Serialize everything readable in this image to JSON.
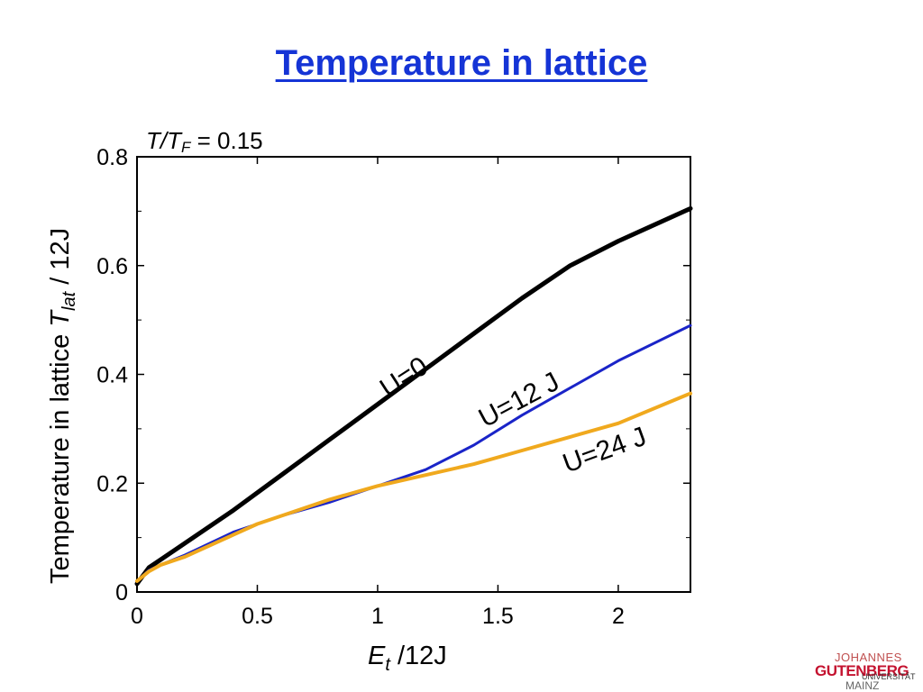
{
  "slide": {
    "title": "Temperature in lattice"
  },
  "chart_data": {
    "type": "line",
    "title": "",
    "annotation": {
      "T": "T",
      "slash": "/",
      "TF": "T",
      "F_sub": "F",
      "eq": " = 0.15"
    },
    "xlabel": {
      "main": "E",
      "sub": "t",
      "rest": " /12J"
    },
    "ylabel": {
      "main": "Temperature in lattice ",
      "T": "T",
      "sub": "lat",
      "rest": " / 12J"
    },
    "xlim": [
      0,
      2.3
    ],
    "ylim": [
      0,
      0.8
    ],
    "xticks": [
      0,
      0.5,
      1,
      1.5,
      2
    ],
    "xtick_labels": [
      "0",
      "0.5",
      "1",
      "1.5",
      "2"
    ],
    "yticks": [
      0,
      0.2,
      0.4,
      0.6,
      0.8
    ],
    "ytick_labels": [
      "0",
      "0.2",
      "0.4",
      "0.6",
      "0.8"
    ],
    "series": [
      {
        "name": "U=0",
        "color": "#000000",
        "points": [
          [
            0,
            0.015
          ],
          [
            0.05,
            0.045
          ],
          [
            0.1,
            0.06
          ],
          [
            0.2,
            0.09
          ],
          [
            0.4,
            0.15
          ],
          [
            0.6,
            0.215
          ],
          [
            0.8,
            0.28
          ],
          [
            1.0,
            0.345
          ],
          [
            1.2,
            0.41
          ],
          [
            1.4,
            0.475
          ],
          [
            1.6,
            0.54
          ],
          [
            1.8,
            0.6
          ],
          [
            2.0,
            0.645
          ],
          [
            2.3,
            0.705
          ]
        ]
      },
      {
        "name": "U=12 J",
        "color": "#1a24c8",
        "points": [
          [
            0,
            0.02
          ],
          [
            0.05,
            0.04
          ],
          [
            0.1,
            0.05
          ],
          [
            0.2,
            0.068
          ],
          [
            0.4,
            0.11
          ],
          [
            0.6,
            0.14
          ],
          [
            0.8,
            0.165
          ],
          [
            1.0,
            0.195
          ],
          [
            1.2,
            0.225
          ],
          [
            1.4,
            0.27
          ],
          [
            1.6,
            0.325
          ],
          [
            1.8,
            0.375
          ],
          [
            2.0,
            0.425
          ],
          [
            2.3,
            0.49
          ]
        ]
      },
      {
        "name": "U=24 J",
        "color": "#f0a91e",
        "points": [
          [
            0,
            0.02
          ],
          [
            0.05,
            0.038
          ],
          [
            0.1,
            0.05
          ],
          [
            0.2,
            0.065
          ],
          [
            0.4,
            0.105
          ],
          [
            0.5,
            0.125
          ],
          [
            0.6,
            0.14
          ],
          [
            0.8,
            0.17
          ],
          [
            1.0,
            0.195
          ],
          [
            1.2,
            0.215
          ],
          [
            1.4,
            0.235
          ],
          [
            1.6,
            0.26
          ],
          [
            1.8,
            0.285
          ],
          [
            2.0,
            0.31
          ],
          [
            2.3,
            0.365
          ]
        ]
      }
    ],
    "series_labels": [
      "U=0",
      "U=12 J",
      "U=24 J"
    ]
  },
  "logo": {
    "line1": "JOHANNES",
    "line2": "GUTENBERG",
    "line3": "UNIVERSITÄT",
    "line4": "MAINZ"
  }
}
